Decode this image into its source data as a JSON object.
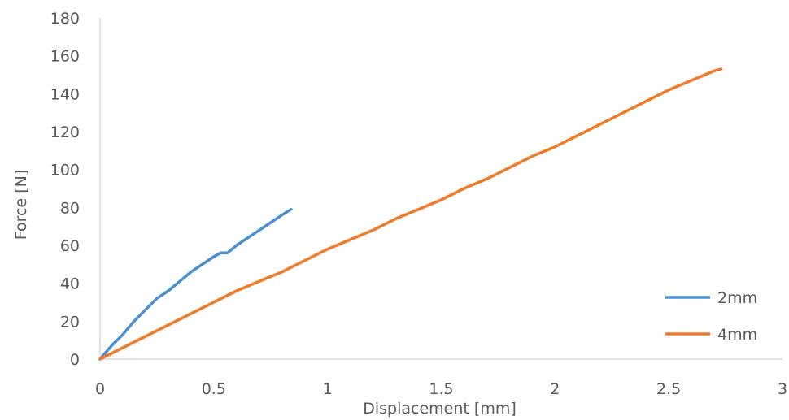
{
  "chart_data": {
    "type": "line",
    "title": "",
    "xlabel": "Displacement [mm]",
    "ylabel": "Force [N]",
    "xlim": [
      0,
      3
    ],
    "ylim": [
      0,
      180
    ],
    "x_ticks": [
      0,
      0.5,
      1,
      1.5,
      2,
      2.5,
      3
    ],
    "x_tick_labels": [
      "0",
      "0.5",
      "1",
      "1.5",
      "2",
      "2.5",
      "3"
    ],
    "y_ticks": [
      0,
      20,
      40,
      60,
      80,
      100,
      120,
      140,
      160,
      180
    ],
    "y_tick_labels": [
      "0",
      "20",
      "40",
      "60",
      "80",
      "100",
      "120",
      "140",
      "160",
      "180"
    ],
    "grid": false,
    "legend_position": "right",
    "series": [
      {
        "name": "2mm",
        "color": "#4a8fd4",
        "x": [
          0,
          0.05,
          0.1,
          0.15,
          0.2,
          0.25,
          0.3,
          0.35,
          0.4,
          0.45,
          0.5,
          0.53,
          0.56,
          0.6,
          0.65,
          0.7,
          0.75,
          0.8,
          0.84
        ],
        "y": [
          0,
          7,
          13,
          20,
          26,
          32,
          36,
          41,
          46,
          50,
          54,
          56,
          56,
          60,
          64,
          68,
          72,
          76,
          79
        ]
      },
      {
        "name": "4mm",
        "color": "#f07a28",
        "x": [
          0,
          0.1,
          0.2,
          0.3,
          0.4,
          0.5,
          0.6,
          0.7,
          0.8,
          0.9,
          1.0,
          1.1,
          1.2,
          1.3,
          1.4,
          1.5,
          1.6,
          1.7,
          1.8,
          1.9,
          2.0,
          2.1,
          2.2,
          2.3,
          2.4,
          2.5,
          2.6,
          2.7,
          2.73
        ],
        "y": [
          0,
          6,
          12,
          18,
          24,
          30,
          36,
          41,
          46,
          52,
          58,
          63,
          68,
          74,
          79,
          84,
          90,
          95,
          101,
          107,
          112,
          118,
          124,
          130,
          136,
          142,
          147,
          152,
          153
        ]
      }
    ]
  }
}
